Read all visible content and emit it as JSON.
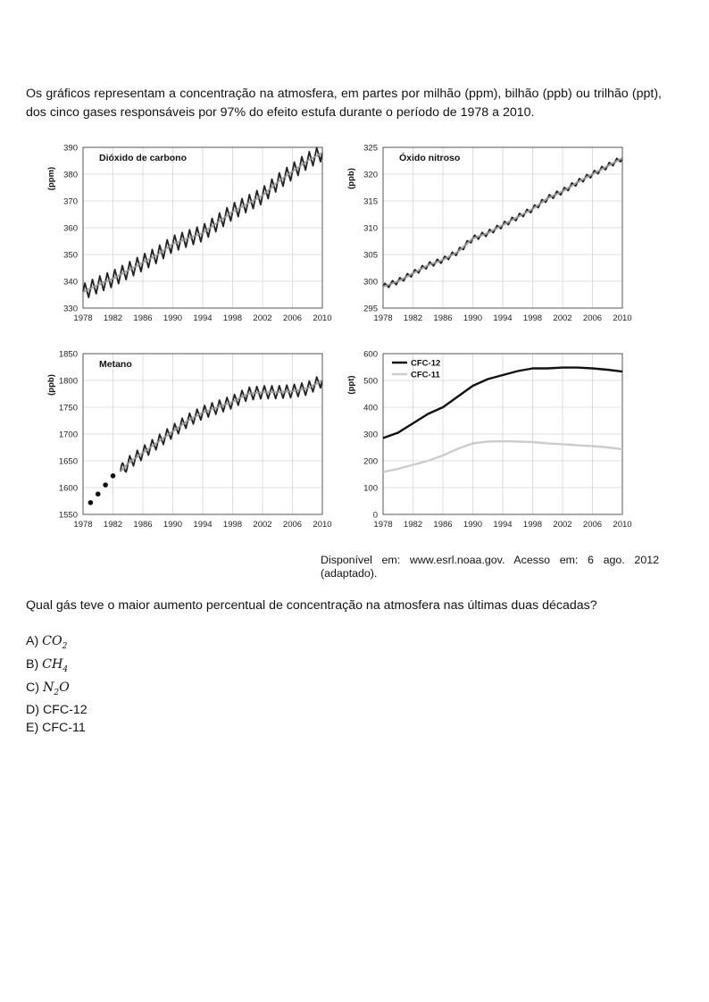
{
  "intro_text": "Os gráficos representam a concentração na atmosfera, em partes por milhão (ppm), bilhão (ppb) ou trilhão (ppt), dos cinco gases responsáveis por 97% do efeito estufa durante o período de 1978 a 2010.",
  "source_text": "Disponível em: www.esrl.noaa.gov. Acesso em: 6 ago. 2012 (adaptado).",
  "question_text": "Qual gás teve o maior aumento percentual de concentração na atmosfera nas últimas duas décadas?",
  "options": [
    {
      "letter": "A)",
      "base": "CO",
      "sub": "2",
      "text": ""
    },
    {
      "letter": "B)",
      "base": "CH",
      "sub": "4",
      "text": ""
    },
    {
      "letter": "C)",
      "base": "N",
      "sub": "2",
      "tail": "O",
      "text": ""
    },
    {
      "letter": "D)",
      "text": "CFC-12"
    },
    {
      "letter": "E)",
      "text": "CFC-11"
    }
  ],
  "chart_data": [
    {
      "type": "line",
      "title": "Dióxido de carbono",
      "ylabel": "(ppm)",
      "xlim": [
        1978,
        2010
      ],
      "ylim": [
        330,
        390
      ],
      "x_ticks": [
        "1978",
        "1982",
        "1986",
        "1990",
        "1994",
        "1998",
        "2002",
        "2006",
        "2010"
      ],
      "y_ticks": [
        "330",
        "340",
        "350",
        "360",
        "370",
        "380",
        "390"
      ],
      "grid": true,
      "seasonal_amplitude": 3,
      "series": [
        {
          "name": "",
          "color": "#222222",
          "x": [
            1978,
            1980,
            1982,
            1984,
            1986,
            1988,
            1990,
            1992,
            1994,
            1996,
            1998,
            2000,
            2002,
            2004,
            2006,
            2008,
            2010
          ],
          "y": [
            336,
            338.7,
            341,
            344,
            347,
            350,
            354,
            356,
            358,
            362,
            366,
            369,
            372,
            377,
            381,
            385,
            388
          ]
        }
      ]
    },
    {
      "type": "line",
      "title": "Óxido nitroso",
      "ylabel": "(ppb)",
      "xlim": [
        1978,
        2010
      ],
      "ylim": [
        295,
        325
      ],
      "x_ticks": [
        "1978",
        "1982",
        "1986",
        "1990",
        "1994",
        "1998",
        "2002",
        "2006",
        "2010"
      ],
      "y_ticks": [
        "295",
        "300",
        "305",
        "310",
        "315",
        "320",
        "325"
      ],
      "grid": true,
      "seasonal_amplitude": 0.5,
      "series": [
        {
          "name": "",
          "color": "#222222",
          "x": [
            1978,
            1980,
            1982,
            1984,
            1986,
            1988,
            1990,
            1992,
            1994,
            1996,
            1998,
            2000,
            2002,
            2004,
            2006,
            2008,
            2010
          ],
          "y": [
            299,
            300,
            301.5,
            303,
            304,
            305.5,
            308,
            309,
            310.5,
            312,
            313.5,
            315.5,
            316.8,
            318.5,
            320,
            321.5,
            323
          ]
        }
      ]
    },
    {
      "type": "line",
      "title": "Metano",
      "ylabel": "(ppb)",
      "xlim": [
        1978,
        2010
      ],
      "ylim": [
        1550,
        1850
      ],
      "x_ticks": [
        "1978",
        "1982",
        "1986",
        "1990",
        "1994",
        "1998",
        "2002",
        "2006",
        "2010"
      ],
      "y_ticks": [
        "1550",
        "1600",
        "1650",
        "1700",
        "1750",
        "1800",
        "1850"
      ],
      "grid": true,
      "seasonal_amplitude": 12,
      "series": [
        {
          "name": "",
          "color": "#222222",
          "x": [
            1983,
            1984,
            1986,
            1988,
            1990,
            1992,
            1994,
            1996,
            1998,
            2000,
            2002,
            2004,
            2006,
            2008,
            2010
          ],
          "y": [
            1630,
            1645,
            1665,
            1685,
            1705,
            1725,
            1740,
            1750,
            1760,
            1775,
            1778,
            1778,
            1780,
            1785,
            1800
          ]
        }
      ],
      "points": {
        "x": [
          1979,
          1980,
          1981,
          1982
        ],
        "y": [
          1572,
          1588,
          1605,
          1622
        ]
      }
    },
    {
      "type": "line",
      "title": "",
      "ylabel": "(ppt)",
      "xlim": [
        1978,
        2010
      ],
      "ylim": [
        0,
        600
      ],
      "x_ticks": [
        "1978",
        "1982",
        "1986",
        "1990",
        "1994",
        "1998",
        "2002",
        "2006",
        "2010"
      ],
      "y_ticks": [
        "0",
        "100",
        "200",
        "300",
        "400",
        "500",
        "600"
      ],
      "grid": true,
      "legend": "top-left",
      "series": [
        {
          "name": "CFC-12",
          "color": "#111111",
          "x": [
            1978,
            1980,
            1982,
            1984,
            1986,
            1988,
            1990,
            1992,
            1994,
            1996,
            1998,
            2000,
            2002,
            2004,
            2006,
            2008,
            2010
          ],
          "y": [
            285,
            305,
            340,
            375,
            400,
            440,
            480,
            505,
            520,
            535,
            545,
            545,
            548,
            548,
            545,
            540,
            533
          ]
        },
        {
          "name": "CFC-11",
          "color": "#cccccc",
          "x": [
            1978,
            1980,
            1982,
            1984,
            1986,
            1988,
            1990,
            1992,
            1994,
            1996,
            1998,
            2000,
            2002,
            2004,
            2006,
            2008,
            2010
          ],
          "y": [
            158,
            170,
            185,
            200,
            220,
            245,
            265,
            272,
            273,
            272,
            270,
            265,
            262,
            258,
            255,
            250,
            243
          ]
        }
      ]
    }
  ]
}
